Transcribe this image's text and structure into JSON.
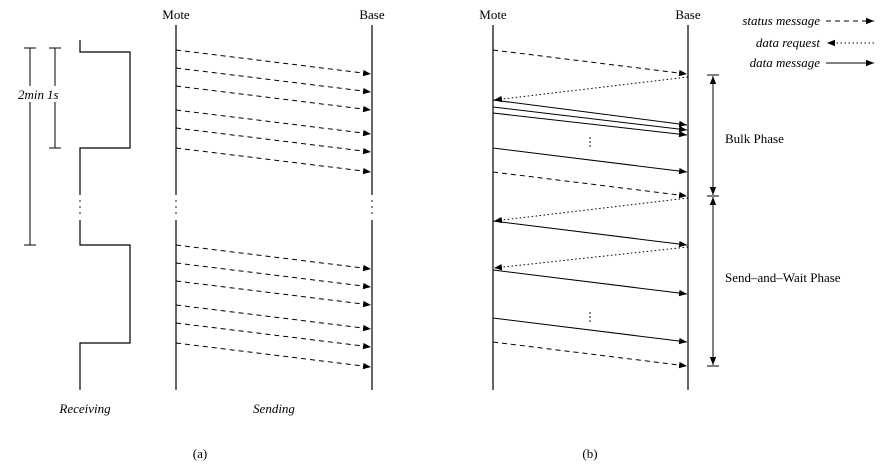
{
  "panel_a": {
    "mote": "Mote",
    "base": "Base",
    "long_interval": "2min",
    "short_interval": "1s",
    "left_caption": "Receiving",
    "right_caption": "Sending",
    "label": "(a)"
  },
  "panel_b": {
    "mote": "Mote",
    "base": "Base",
    "phase_1": "Bulk Phase",
    "phase_2": "Send–and–Wait Phase",
    "label": "(b)"
  },
  "legend": {
    "status": "status message",
    "request": "data request",
    "data": "data message"
  }
}
